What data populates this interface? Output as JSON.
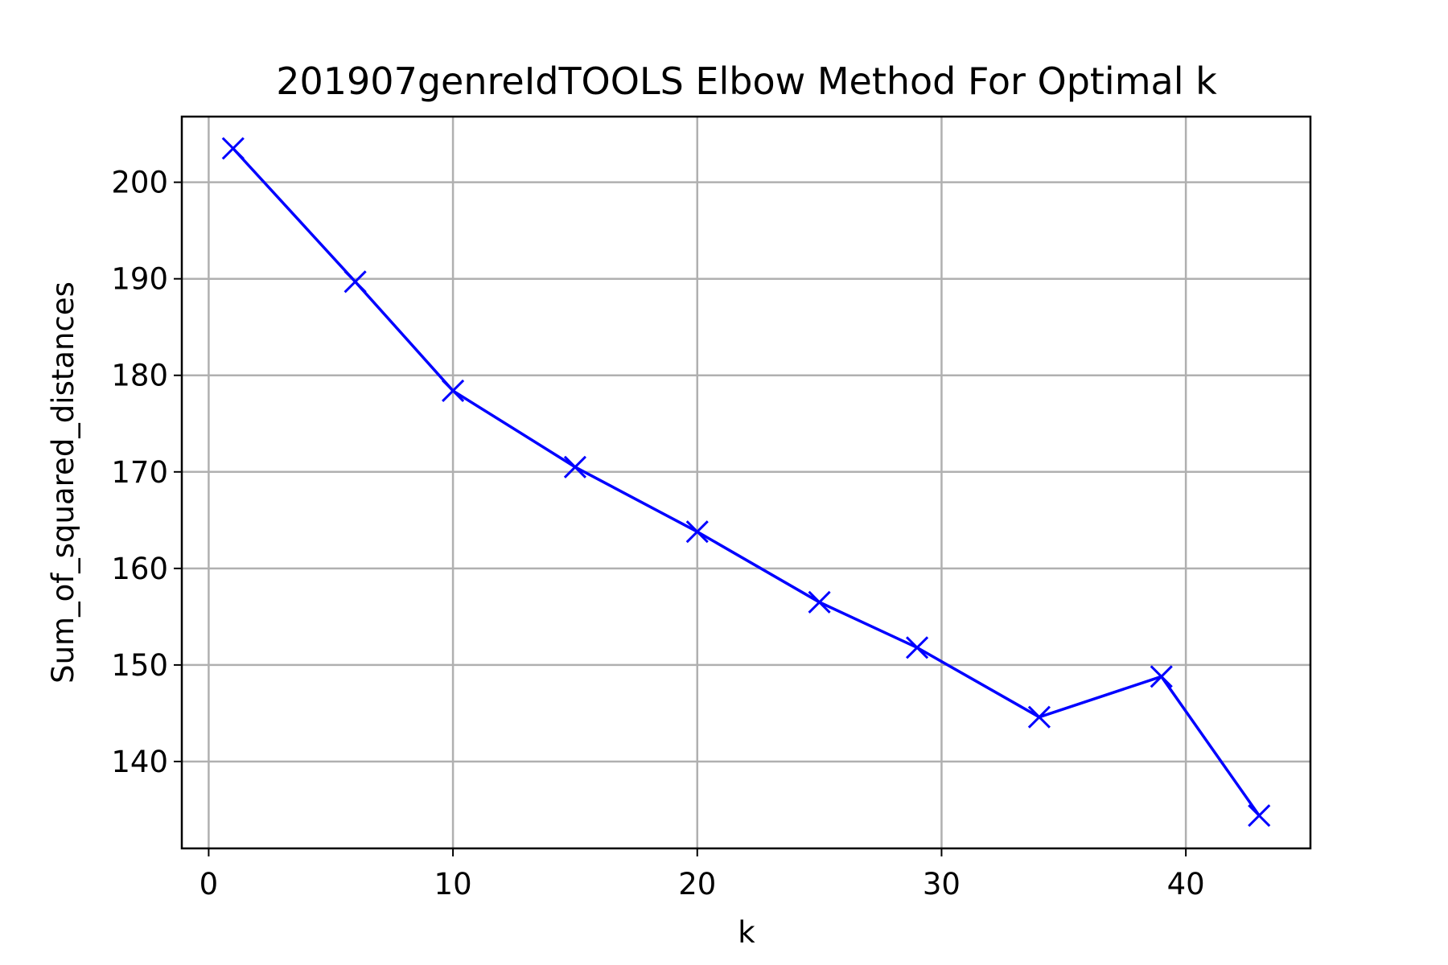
{
  "chart_data": {
    "type": "line",
    "title": "201907genreIdTOOLS Elbow Method For Optimal k",
    "xlabel": "k",
    "ylabel": "Sum_of_squared_distances",
    "xlim": [
      -1.1,
      45.1
    ],
    "ylim": [
      131.0,
      206.8
    ],
    "xticks": [
      0,
      10,
      20,
      30,
      40
    ],
    "yticks": [
      140,
      150,
      160,
      170,
      180,
      190,
      200
    ],
    "grid": true,
    "series": [
      {
        "marker": "x",
        "color": "#0000ff",
        "x": [
          1,
          6,
          10,
          15,
          20,
          25,
          29,
          34,
          39,
          43
        ],
        "y": [
          203.5,
          189.7,
          178.4,
          170.5,
          163.8,
          156.5,
          151.8,
          144.6,
          148.8,
          134.4
        ]
      }
    ]
  }
}
